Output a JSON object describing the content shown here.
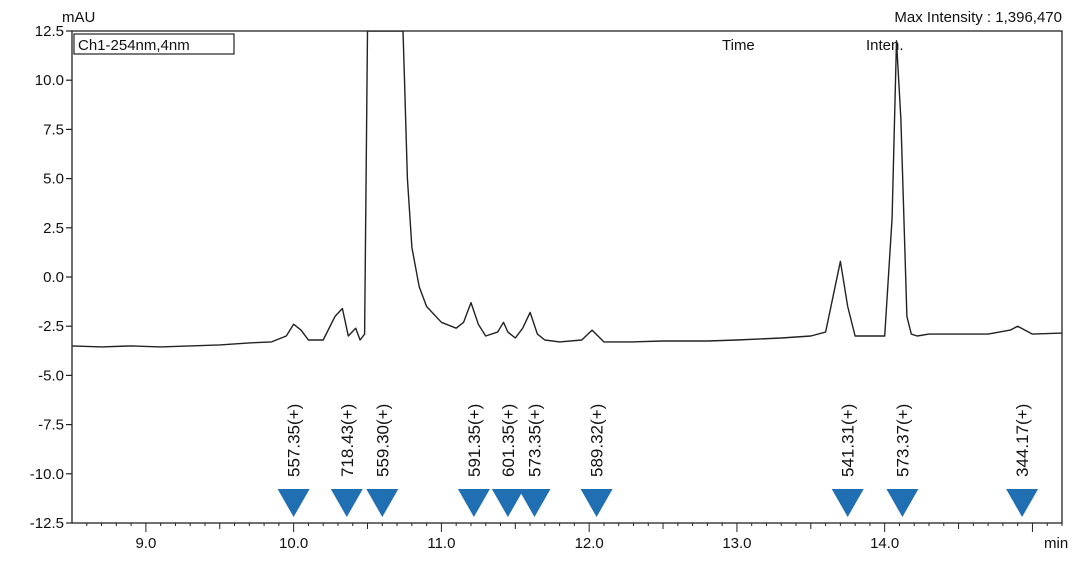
{
  "chart_data": {
    "type": "line",
    "title": "",
    "channel_label": "Ch1-254nm,4nm",
    "ylabel": "mAU",
    "xlabel": "min",
    "header_right": "Max Intensity : 1,396,470",
    "legend_time": "Time",
    "legend_inten": "Inten.",
    "xlim": [
      8.5,
      15.2
    ],
    "ylim": [
      -12.5,
      12.5
    ],
    "x_ticks": [
      9.0,
      10.0,
      11.0,
      12.0,
      13.0,
      14.0
    ],
    "x_tick_labels": [
      "9.0",
      "10.0",
      "11.0",
      "12.0",
      "13.0",
      "14.0"
    ],
    "y_ticks": [
      12.5,
      10.0,
      7.5,
      5.0,
      2.5,
      0.0,
      -2.5,
      -5.0,
      -7.5,
      -10.0,
      -12.5
    ],
    "y_tick_labels": [
      "12.5",
      "10.0",
      "7.5",
      "5.0",
      "2.5",
      "0.0",
      "-2.5",
      "-5.0",
      "-7.5",
      "-10.0",
      "-12.5"
    ],
    "grid": false,
    "series": [
      {
        "x": [
          8.5,
          8.7,
          8.9,
          9.1,
          9.3,
          9.5,
          9.7,
          9.85,
          9.95,
          10.0,
          10.05,
          10.1,
          10.2,
          10.28,
          10.33,
          10.37,
          10.42,
          10.45,
          10.48,
          10.5,
          10.5,
          10.51,
          10.74,
          10.75,
          10.77,
          10.8,
          10.85,
          10.9,
          11.0,
          11.1,
          11.15,
          11.2,
          11.25,
          11.3,
          11.38,
          11.42,
          11.45,
          11.5,
          11.55,
          11.6,
          11.65,
          11.7,
          11.8,
          11.95,
          12.02,
          12.1,
          12.3,
          12.5,
          12.8,
          13.0,
          13.3,
          13.5,
          13.6,
          13.65,
          13.7,
          13.75,
          13.8,
          13.85,
          13.9,
          14.0,
          14.05,
          14.08,
          14.11,
          14.15,
          14.18,
          14.22,
          14.3,
          14.5,
          14.7,
          14.85,
          14.9,
          15.0,
          15.2
        ],
        "values": [
          -3.5,
          -3.55,
          -3.5,
          -3.55,
          -3.5,
          -3.45,
          -3.35,
          -3.3,
          -3.0,
          -2.4,
          -2.7,
          -3.2,
          -3.2,
          -2.0,
          -1.6,
          -3.0,
          -2.6,
          -3.2,
          -2.9,
          12.5,
          12.5,
          12.5,
          12.5,
          10.0,
          5.0,
          1.5,
          -0.5,
          -1.5,
          -2.3,
          -2.6,
          -2.3,
          -1.3,
          -2.4,
          -3.0,
          -2.8,
          -2.3,
          -2.8,
          -3.1,
          -2.6,
          -1.8,
          -2.9,
          -3.2,
          -3.3,
          -3.2,
          -2.7,
          -3.3,
          -3.3,
          -3.25,
          -3.25,
          -3.2,
          -3.1,
          -3.0,
          -2.8,
          -1.0,
          0.8,
          -1.5,
          -3.0,
          -3.0,
          -3.0,
          -3.0,
          3.0,
          12.0,
          8.0,
          -2.0,
          -2.9,
          -3.0,
          -2.9,
          -2.9,
          -2.9,
          -2.7,
          -2.5,
          -2.9,
          -2.85
        ]
      }
    ],
    "annotations": [
      {
        "x": 10.0,
        "label": "557.35(+)"
      },
      {
        "x": 10.36,
        "label": "718.43(+)"
      },
      {
        "x": 10.6,
        "label": "559.30(+)"
      },
      {
        "x": 11.22,
        "label": "591.35(+)"
      },
      {
        "x": 11.45,
        "label": "601.35(+)"
      },
      {
        "x": 11.63,
        "label": "573.35(+)"
      },
      {
        "x": 12.05,
        "label": "589.32(+)"
      },
      {
        "x": 13.75,
        "label": "541.31(+)"
      },
      {
        "x": 14.12,
        "label": "573.37(+)"
      },
      {
        "x": 14.93,
        "label": "344.17(+)"
      }
    ],
    "marker_color": "#1f6fb2",
    "line_color": "#222222"
  }
}
